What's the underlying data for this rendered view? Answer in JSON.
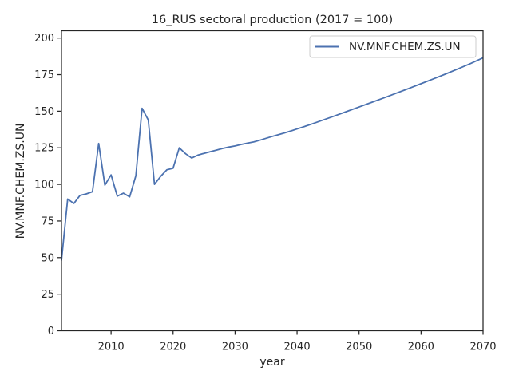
{
  "chart_data": {
    "type": "line",
    "title": "16_RUS sectoral production (2017 = 100)",
    "xlabel": "year",
    "ylabel": "NV.MNF.CHEM.ZS.UN",
    "xlim": [
      2002,
      2070
    ],
    "ylim": [
      0,
      205
    ],
    "xticks": [
      2010,
      2020,
      2030,
      2040,
      2050,
      2060,
      2070
    ],
    "yticks": [
      0,
      25,
      50,
      75,
      100,
      125,
      150,
      175,
      200
    ],
    "grid": false,
    "legend_position": "top-right",
    "series": [
      {
        "name": "NV.MNF.CHEM.ZS.UN",
        "color": "#4c72b0",
        "points": [
          [
            2002,
            48
          ],
          [
            2003,
            90
          ],
          [
            2004,
            87
          ],
          [
            2005,
            92.5
          ],
          [
            2006,
            93.5
          ],
          [
            2007,
            95
          ],
          [
            2008,
            128
          ],
          [
            2009,
            99.5
          ],
          [
            2010,
            106.5
          ],
          [
            2011,
            92
          ],
          [
            2012,
            94
          ],
          [
            2013,
            91.5
          ],
          [
            2014,
            106
          ],
          [
            2015,
            152
          ],
          [
            2016,
            144
          ],
          [
            2017,
            100
          ],
          [
            2018,
            105.5
          ],
          [
            2019,
            110
          ],
          [
            2020,
            111
          ],
          [
            2021,
            125
          ],
          [
            2022,
            121
          ],
          [
            2023,
            118
          ],
          [
            2024,
            120
          ],
          [
            2025,
            121.2
          ],
          [
            2026,
            122.3
          ],
          [
            2027,
            123.4
          ],
          [
            2028,
            124.6
          ],
          [
            2029,
            125.5
          ],
          [
            2030,
            126.3
          ],
          [
            2031,
            127.3
          ],
          [
            2032,
            128.2
          ],
          [
            2033,
            129
          ],
          [
            2034,
            130.2
          ],
          [
            2035,
            131.5
          ],
          [
            2036,
            132.8
          ],
          [
            2037,
            134
          ],
          [
            2038,
            135.2
          ],
          [
            2039,
            136.5
          ],
          [
            2040,
            137.9
          ],
          [
            2042,
            140.7
          ],
          [
            2044,
            143.7
          ],
          [
            2046,
            146.7
          ],
          [
            2048,
            149.8
          ],
          [
            2050,
            152.9
          ],
          [
            2052,
            156
          ],
          [
            2054,
            159.1
          ],
          [
            2056,
            162.3
          ],
          [
            2058,
            165.5
          ],
          [
            2060,
            168.8
          ],
          [
            2062,
            172.1
          ],
          [
            2064,
            175.5
          ],
          [
            2066,
            179
          ],
          [
            2068,
            182.6
          ],
          [
            2070,
            186.5
          ]
        ]
      }
    ]
  }
}
